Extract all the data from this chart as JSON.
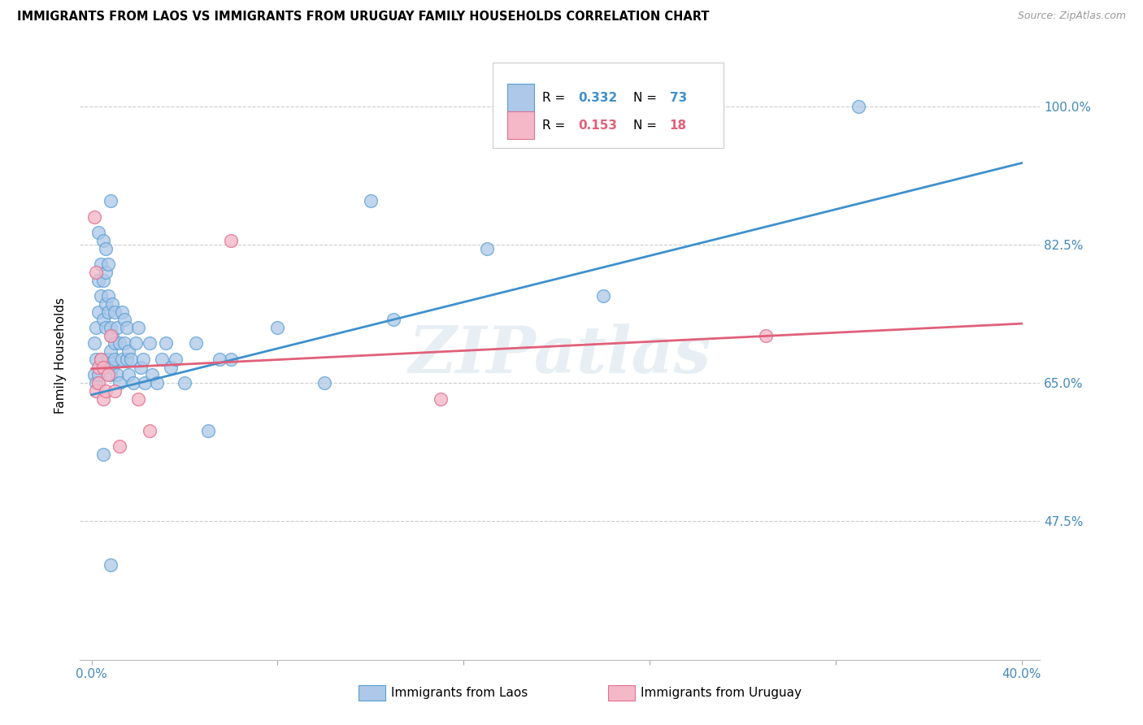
{
  "title": "IMMIGRANTS FROM LAOS VS IMMIGRANTS FROM URUGUAY FAMILY HOUSEHOLDS CORRELATION CHART",
  "source": "Source: ZipAtlas.com",
  "ylabel": "Family Households",
  "legend_laos": "Immigrants from Laos",
  "legend_uruguay": "Immigrants from Uruguay",
  "R_laos": "0.332",
  "N_laos": "73",
  "R_uruguay": "0.153",
  "N_uruguay": "18",
  "blue_fill": "#adc8e8",
  "blue_edge": "#5a9fd4",
  "pink_fill": "#f4b8c8",
  "pink_edge": "#e07090",
  "blue_line": "#4090cc",
  "pink_line": "#e0607a",
  "blue_text": "#4090cc",
  "pink_text": "#e0607a",
  "watermark": "ZIPatlas",
  "xmin": 0.0,
  "xmax": 0.4,
  "ymin": 0.3,
  "ymax": 1.07,
  "y_ticks": [
    1.0,
    0.825,
    0.65,
    0.475
  ],
  "y_tick_labels": [
    "100.0%",
    "82.5%",
    "65.0%",
    "47.5%"
  ],
  "blue_line_y0": 0.635,
  "blue_line_y1": 0.928,
  "pink_line_y0": 0.668,
  "pink_line_y1": 0.725,
  "laos_x": [
    0.001,
    0.001,
    0.002,
    0.002,
    0.002,
    0.003,
    0.003,
    0.003,
    0.003,
    0.004,
    0.004,
    0.004,
    0.005,
    0.005,
    0.005,
    0.006,
    0.006,
    0.006,
    0.006,
    0.007,
    0.007,
    0.007,
    0.007,
    0.008,
    0.008,
    0.008,
    0.009,
    0.009,
    0.009,
    0.01,
    0.01,
    0.01,
    0.011,
    0.011,
    0.012,
    0.012,
    0.013,
    0.013,
    0.014,
    0.014,
    0.015,
    0.015,
    0.016,
    0.016,
    0.017,
    0.018,
    0.019,
    0.02,
    0.021,
    0.022,
    0.023,
    0.025,
    0.026,
    0.028,
    0.03,
    0.032,
    0.034,
    0.036,
    0.04,
    0.045,
    0.05,
    0.06,
    0.08,
    0.1,
    0.13,
    0.17,
    0.22,
    0.008,
    0.12,
    0.005,
    0.33,
    0.008,
    0.055
  ],
  "laos_y": [
    0.66,
    0.7,
    0.68,
    0.72,
    0.65,
    0.74,
    0.78,
    0.84,
    0.66,
    0.76,
    0.8,
    0.68,
    0.73,
    0.78,
    0.83,
    0.75,
    0.79,
    0.82,
    0.72,
    0.76,
    0.8,
    0.74,
    0.68,
    0.66,
    0.72,
    0.69,
    0.75,
    0.71,
    0.67,
    0.7,
    0.74,
    0.68,
    0.72,
    0.66,
    0.7,
    0.65,
    0.74,
    0.68,
    0.7,
    0.73,
    0.68,
    0.72,
    0.66,
    0.69,
    0.68,
    0.65,
    0.7,
    0.72,
    0.67,
    0.68,
    0.65,
    0.7,
    0.66,
    0.65,
    0.68,
    0.7,
    0.67,
    0.68,
    0.65,
    0.7,
    0.59,
    0.68,
    0.72,
    0.65,
    0.73,
    0.82,
    0.76,
    0.42,
    0.88,
    0.56,
    1.0,
    0.88,
    0.68
  ],
  "uruguay_x": [
    0.001,
    0.002,
    0.002,
    0.003,
    0.003,
    0.004,
    0.005,
    0.005,
    0.006,
    0.007,
    0.008,
    0.01,
    0.012,
    0.02,
    0.06,
    0.15,
    0.29,
    0.025
  ],
  "uruguay_y": [
    0.86,
    0.64,
    0.79,
    0.67,
    0.65,
    0.68,
    0.63,
    0.67,
    0.64,
    0.66,
    0.71,
    0.64,
    0.57,
    0.63,
    0.83,
    0.63,
    0.71,
    0.59
  ]
}
